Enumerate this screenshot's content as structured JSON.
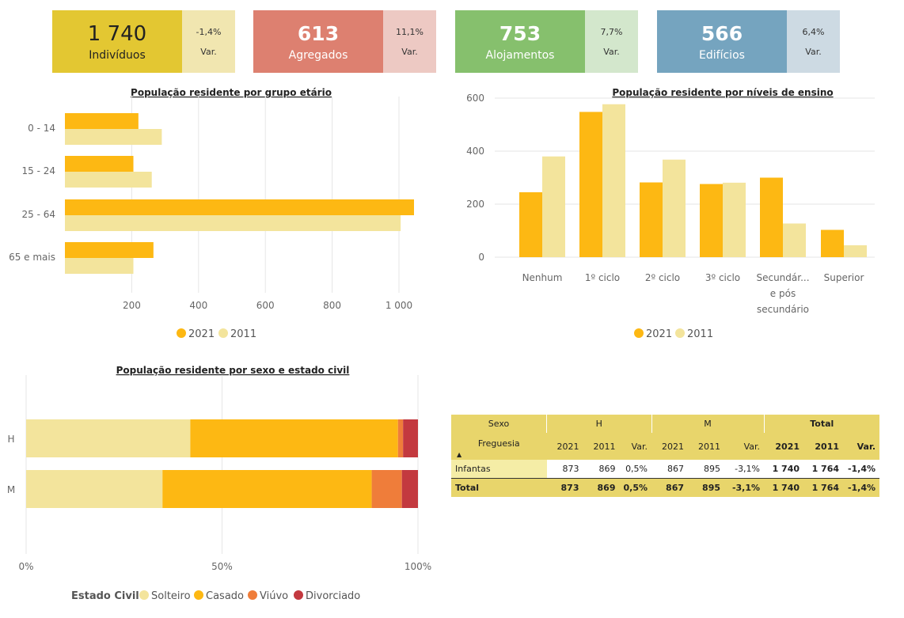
{
  "kpis": [
    {
      "value": "1 740",
      "label": "Indivíduos",
      "var": "-1,4%",
      "var_label": "Var.",
      "color": "#e3c732",
      "var_color": "#f1e6b0"
    },
    {
      "value": "613",
      "label": "Agregados",
      "var": "11,1%",
      "var_label": "Var.",
      "color": "#dd8070",
      "var_color": "#edc9c3"
    },
    {
      "value": "753",
      "label": "Alojamentos",
      "var": "7,7%",
      "var_label": "Var.",
      "color": "#86c06d",
      "var_color": "#d3e7cc"
    },
    {
      "value": "566",
      "label": "Edifícios",
      "var": "6,4%",
      "var_label": "Var.",
      "color": "#75a4bf",
      "var_color": "#cddae3"
    }
  ],
  "colors": {
    "c2021": "#fdb813",
    "c2011": "#f3e49c",
    "solteiro": "#f3e49c",
    "casado": "#fdb813",
    "viuvo": "#ef7d3a",
    "divorciado": "#c3393f"
  },
  "chart_data": [
    {
      "type": "bar",
      "orientation": "horizontal",
      "title": "População residente por grupo etário",
      "categories": [
        "0 - 14",
        "15 - 24",
        "25 - 64",
        "65 e mais"
      ],
      "series": [
        {
          "name": "2021",
          "values": [
            220,
            205,
            1045,
            265
          ]
        },
        {
          "name": "2011",
          "values": [
            290,
            260,
            1005,
            205
          ]
        }
      ],
      "xticks": [
        "200",
        "400",
        "600",
        "800",
        "1 000"
      ],
      "xlim": [
        0,
        1060
      ],
      "legend": "bottom"
    },
    {
      "type": "bar",
      "title": "População residente por níveis de ensino",
      "categories": [
        "Nenhum",
        "1º ciclo",
        "2º ciclo",
        "3º ciclo",
        "Secundár... e pós secundário",
        "Superior"
      ],
      "series": [
        {
          "name": "2021",
          "values": [
            245,
            548,
            282,
            276,
            300,
            103
          ]
        },
        {
          "name": "2011",
          "values": [
            380,
            577,
            368,
            281,
            127,
            45
          ]
        }
      ],
      "yticks": [
        "0",
        "200",
        "400",
        "600"
      ],
      "ylim": [
        0,
        640
      ],
      "legend": "bottom"
    },
    {
      "type": "bar",
      "stacked": "100%",
      "orientation": "horizontal",
      "title": "População residente por sexo e estado civil",
      "categories": [
        "H",
        "M"
      ],
      "series": [
        {
          "name": "Solteiro",
          "values": [
            41.9,
            34.8
          ]
        },
        {
          "name": "Casado",
          "values": [
            53.0,
            53.4
          ]
        },
        {
          "name": "Viúvo",
          "values": [
            1.3,
            7.7
          ]
        },
        {
          "name": "Divorciado",
          "values": [
            3.8,
            4.1
          ]
        }
      ],
      "xticks": [
        "0%",
        "50%",
        "100%"
      ],
      "legend_title": "Estado Civil",
      "legend": "bottom"
    }
  ],
  "matrix": {
    "h_sexo": "Sexo",
    "h_H": "H",
    "h_M": "M",
    "h_total": "Total",
    "h_freguesia": "Freguesia",
    "sub": [
      "2021",
      "2011",
      "Var.",
      "2021",
      "2011",
      "Var.",
      "2021",
      "2011",
      "Var."
    ],
    "rows": [
      {
        "label": "Infantas",
        "values": [
          "873",
          "869",
          "0,5%",
          "867",
          "895",
          "-3,1%",
          "1 740",
          "1 764",
          "-1,4%"
        ]
      },
      {
        "label": "Total",
        "values": [
          "873",
          "869",
          "0,5%",
          "867",
          "895",
          "-3,1%",
          "1 740",
          "1 764",
          "-1,4%"
        ]
      }
    ]
  }
}
